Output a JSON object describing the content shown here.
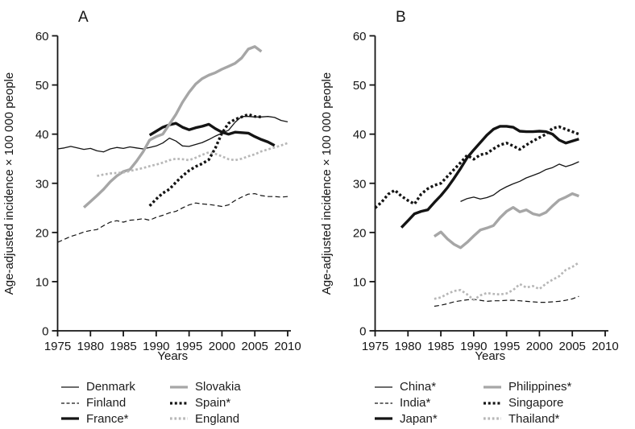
{
  "figure": {
    "background": "#ffffff",
    "black": "#141414",
    "gray": "#a6a6a6",
    "light_gray": "#b7b7b7"
  },
  "chart_data": [
    {
      "type": "line",
      "panel_label": "A",
      "ylabel": "Age-adjusted incidence × 100 000 people",
      "xlabel": "Years",
      "xlim": [
        1975,
        2010
      ],
      "ylim": [
        0,
        60
      ],
      "x_ticks": [
        1975,
        1980,
        1985,
        1990,
        1995,
        2000,
        2005,
        2010
      ],
      "y_ticks": [
        0,
        10,
        20,
        30,
        40,
        50,
        60
      ],
      "grid": false,
      "legend_position": "below",
      "series": [
        {
          "name": "Denmark",
          "line": "thin-solid",
          "color": "#141414",
          "start_year": 1975,
          "values": [
            37.0,
            37.2,
            37.5,
            37.2,
            36.9,
            37.1,
            36.6,
            36.4,
            37.0,
            37.3,
            37.1,
            37.4,
            37.2,
            37.0,
            37.3,
            37.6,
            38.2,
            39.2,
            38.6,
            37.6,
            37.5,
            37.9,
            38.3,
            38.9,
            39.6,
            40.2,
            40.8,
            42.4,
            43.6,
            43.6,
            43.5,
            43.5,
            43.6,
            43.4,
            42.8,
            42.5
          ]
        },
        {
          "name": "Finland",
          "line": "thin-dashed",
          "color": "#141414",
          "start_year": 1975,
          "values": [
            18.0,
            18.6,
            19.2,
            19.6,
            20.1,
            20.4,
            20.6,
            21.4,
            22.1,
            22.4,
            22.1,
            22.5,
            22.6,
            22.8,
            22.5,
            23.1,
            23.5,
            24.0,
            24.3,
            25.0,
            25.6,
            26.0,
            25.8,
            25.7,
            25.5,
            25.3,
            25.6,
            26.5,
            27.2,
            27.8,
            27.9,
            27.5,
            27.3,
            27.3,
            27.2,
            27.3
          ]
        },
        {
          "name": "France*",
          "line": "thick-solid",
          "color": "#141414",
          "start_year": 1989,
          "values": [
            39.8,
            40.6,
            41.4,
            41.9,
            42.2,
            41.4,
            40.9,
            41.3,
            41.6,
            42.0,
            41.1,
            40.4,
            40.0,
            40.4,
            40.3,
            40.2,
            39.5,
            38.9,
            38.4,
            37.7
          ]
        },
        {
          "name": "Slovakia",
          "line": "thick-solid",
          "color": "#a6a6a6",
          "start_year": 1979,
          "values": [
            25.1,
            26.3,
            27.5,
            28.8,
            30.3,
            31.5,
            32.4,
            32.8,
            34.5,
            36.4,
            38.8,
            39.5,
            40.0,
            42.0,
            44.0,
            46.5,
            48.5,
            50.2,
            51.3,
            52.0,
            52.5,
            53.2,
            53.8,
            54.4,
            55.5,
            57.3,
            57.8,
            56.8
          ]
        },
        {
          "name": "Spain*",
          "line": "thick-dotted",
          "color": "#141414",
          "start_year": 1989,
          "values": [
            25.4,
            26.8,
            28.0,
            28.8,
            30.2,
            31.5,
            32.6,
            33.4,
            34.0,
            34.8,
            37.2,
            40.2,
            42.2,
            43.0,
            43.5,
            44.0,
            43.6,
            43.5
          ]
        },
        {
          "name": "England",
          "line": "light-dotted",
          "color": "#b7b7b7",
          "start_year": 1981,
          "values": [
            31.5,
            31.8,
            32.0,
            32.1,
            32.2,
            32.5,
            32.8,
            33.1,
            33.5,
            33.8,
            34.2,
            34.7,
            35.0,
            34.9,
            34.7,
            35.2,
            35.8,
            36.3,
            36.0,
            35.5,
            34.9,
            34.7,
            35.0,
            35.5,
            35.9,
            36.5,
            36.9,
            37.3,
            37.7,
            38.2
          ]
        }
      ]
    },
    {
      "type": "line",
      "panel_label": "B",
      "ylabel": "Age-adjusted incidence × 100 000 people",
      "xlabel": "Years",
      "xlim": [
        1975,
        2010
      ],
      "ylim": [
        0,
        60
      ],
      "x_ticks": [
        1975,
        1980,
        1985,
        1990,
        1995,
        2000,
        2005,
        2010
      ],
      "y_ticks": [
        0,
        10,
        20,
        30,
        40,
        50,
        60
      ],
      "grid": false,
      "legend_position": "below",
      "series": [
        {
          "name": "China*",
          "line": "thin-solid",
          "color": "#141414",
          "start_year": 1988,
          "values": [
            26.3,
            26.9,
            27.2,
            26.8,
            27.1,
            27.6,
            28.6,
            29.3,
            29.9,
            30.4,
            31.1,
            31.6,
            32.1,
            32.8,
            33.2,
            33.9,
            33.4,
            33.8,
            34.4
          ]
        },
        {
          "name": "India*",
          "line": "thin-dashed",
          "color": "#141414",
          "start_year": 1984,
          "values": [
            5.0,
            5.2,
            5.5,
            5.9,
            6.1,
            6.3,
            6.4,
            6.2,
            6.0,
            6.1,
            6.1,
            6.2,
            6.2,
            6.1,
            6.0,
            5.9,
            5.8,
            5.8,
            5.9,
            6.0,
            6.2,
            6.5,
            7.0
          ]
        },
        {
          "name": "Japan*",
          "line": "thick-solid",
          "color": "#141414",
          "start_year": 1979,
          "values": [
            21.0,
            22.4,
            23.8,
            24.3,
            24.6,
            26.1,
            27.5,
            29.1,
            31.0,
            33.0,
            35.2,
            36.8,
            38.3,
            39.8,
            41.0,
            41.6,
            41.6,
            41.4,
            40.6,
            40.5,
            40.5,
            40.6,
            40.5,
            40.0,
            38.8,
            38.2,
            38.6,
            39.0
          ]
        },
        {
          "name": "Philippines*",
          "line": "thick-solid",
          "color": "#a6a6a6",
          "start_year": 1984,
          "values": [
            19.2,
            20.1,
            18.7,
            17.6,
            16.9,
            18.0,
            19.3,
            20.5,
            20.9,
            21.4,
            23.0,
            24.3,
            25.1,
            24.2,
            24.6,
            23.8,
            23.5,
            24.1,
            25.4,
            26.6,
            27.2,
            27.9,
            27.4
          ]
        },
        {
          "name": "Singapore",
          "line": "thick-dotted",
          "color": "#141414",
          "start_year": 1975,
          "values": [
            25.0,
            26.2,
            27.8,
            28.6,
            27.4,
            26.5,
            25.8,
            27.8,
            28.9,
            29.6,
            30.0,
            31.4,
            32.8,
            34.2,
            35.7,
            34.9,
            35.8,
            36.1,
            37.0,
            37.8,
            38.2,
            37.6,
            36.9,
            37.8,
            38.6,
            39.3,
            40.0,
            41.2,
            41.5,
            41.0,
            40.5,
            40.0
          ]
        },
        {
          "name": "Thailand*",
          "line": "light-dotted",
          "color": "#b7b7b7",
          "start_year": 1984,
          "values": [
            6.5,
            6.8,
            7.5,
            8.1,
            8.3,
            7.4,
            6.3,
            7.2,
            7.7,
            7.5,
            7.4,
            7.6,
            8.3,
            9.5,
            8.8,
            9.1,
            8.5,
            9.6,
            10.4,
            11.1,
            12.4,
            13.0,
            13.9
          ]
        }
      ]
    }
  ]
}
